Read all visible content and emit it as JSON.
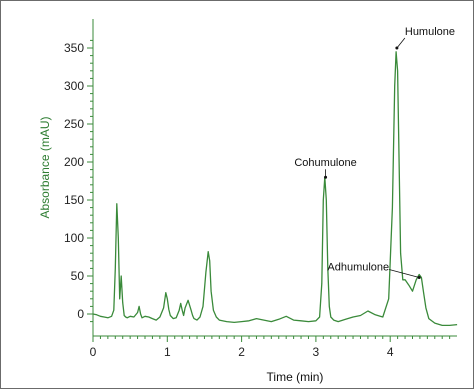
{
  "chart_data": {
    "type": "line",
    "xlabel": "Time (min)",
    "ylabel": "Absorbance (mAU)",
    "xlim": [
      0,
      4.9
    ],
    "ylim": [
      -20,
      370
    ],
    "x_ticks": [
      0,
      1,
      2,
      3,
      4
    ],
    "y_ticks": [
      0,
      50,
      100,
      150,
      200,
      250,
      300,
      350
    ],
    "grid": false,
    "colors": {
      "line": "#3a8a3a",
      "ylabel": "#2e7d32",
      "axis": "#3a8a3a"
    },
    "series": [
      {
        "x": [
          0.0,
          0.05,
          0.1,
          0.15,
          0.2,
          0.25,
          0.28,
          0.3,
          0.32,
          0.34,
          0.36,
          0.38,
          0.4,
          0.42,
          0.44,
          0.46,
          0.5,
          0.55,
          0.6,
          0.62,
          0.64,
          0.66,
          0.7,
          0.75,
          0.8,
          0.85,
          0.9,
          0.95,
          0.98,
          1.0,
          1.02,
          1.04,
          1.08,
          1.12,
          1.16,
          1.18,
          1.2,
          1.22,
          1.24,
          1.28,
          1.32,
          1.34,
          1.36,
          1.4,
          1.44,
          1.48,
          1.52,
          1.55,
          1.57,
          1.59,
          1.62,
          1.66,
          1.7,
          1.8,
          1.9,
          2.0,
          2.1,
          2.2,
          2.3,
          2.4,
          2.5,
          2.6,
          2.7,
          2.8,
          2.9,
          3.0,
          3.05,
          3.08,
          3.1,
          3.12,
          3.14,
          3.16,
          3.18,
          3.2,
          3.24,
          3.3,
          3.4,
          3.5,
          3.6,
          3.7,
          3.8,
          3.9,
          3.98,
          4.03,
          4.06,
          4.08,
          4.1,
          4.12,
          4.14,
          4.17,
          4.2,
          4.25,
          4.3,
          4.35,
          4.39,
          4.42,
          4.45,
          4.48,
          4.52,
          4.6,
          4.7,
          4.8,
          4.9
        ],
        "y": [
          0,
          -1,
          -3,
          -4,
          -5,
          -3,
          5,
          60,
          145,
          100,
          20,
          50,
          15,
          -2,
          -4,
          -5,
          -3,
          -4,
          2,
          10,
          0,
          -5,
          -3,
          -4,
          -6,
          -8,
          -4,
          8,
          28,
          20,
          6,
          -2,
          -6,
          -5,
          5,
          14,
          5,
          -2,
          8,
          18,
          5,
          -2,
          -6,
          -8,
          -4,
          10,
          55,
          82,
          70,
          30,
          5,
          -4,
          -8,
          -10,
          -11,
          -10,
          -9,
          -6,
          -8,
          -10,
          -7,
          -3,
          -8,
          -9,
          -10,
          -9,
          -4,
          40,
          150,
          180,
          150,
          60,
          10,
          -4,
          -8,
          -10,
          -7,
          -4,
          -2,
          4,
          -1,
          -4,
          20,
          140,
          300,
          345,
          320,
          200,
          80,
          45,
          45,
          38,
          30,
          45,
          52,
          48,
          28,
          8,
          -6,
          -12,
          -15,
          -15,
          -14
        ]
      }
    ],
    "annotations": [
      {
        "label": "Humulone",
        "x": 4.09,
        "y": 350
      },
      {
        "label": "Cohumulone",
        "x": 3.13,
        "y": 180
      },
      {
        "label": "Adhumulone",
        "x": 4.39,
        "y": 48
      }
    ]
  }
}
